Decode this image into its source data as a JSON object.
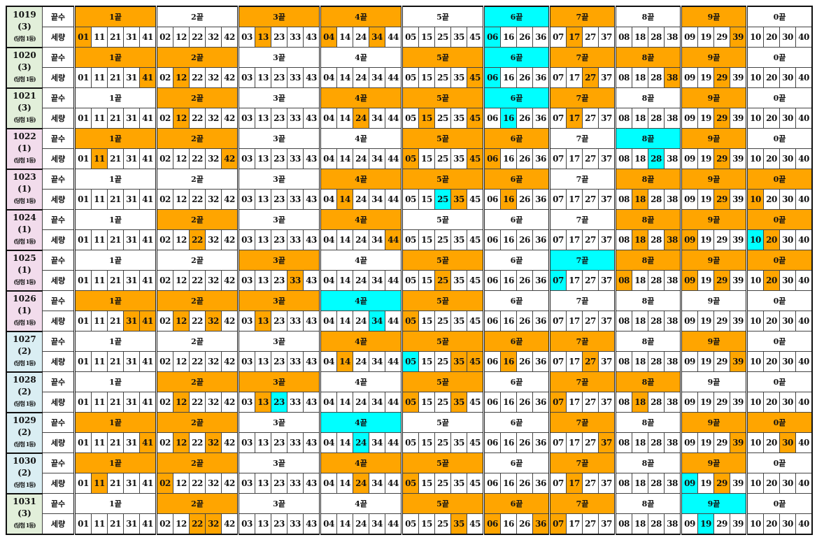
{
  "labels": {
    "header_row": "끝수",
    "number_row": "세량"
  },
  "colors": {
    "orange": "#ffa500",
    "cyan": "#00ffff",
    "green_label": "#e2efda",
    "pink_label": "#f2dcec",
    "blue_label": "#daeef3"
  },
  "groups": [
    {
      "label": "1끝",
      "numbers": [
        "01",
        "11",
        "21",
        "31",
        "41"
      ]
    },
    {
      "label": "2끝",
      "numbers": [
        "02",
        "12",
        "22",
        "32",
        "42"
      ]
    },
    {
      "label": "3끝",
      "numbers": [
        "03",
        "13",
        "23",
        "33",
        "43"
      ]
    },
    {
      "label": "4끝",
      "numbers": [
        "04",
        "14",
        "24",
        "34",
        "44"
      ]
    },
    {
      "label": "5끝",
      "numbers": [
        "05",
        "15",
        "25",
        "35",
        "45"
      ]
    },
    {
      "label": "6끝",
      "numbers": [
        "06",
        "16",
        "26",
        "36"
      ]
    },
    {
      "label": "7끝",
      "numbers": [
        "07",
        "17",
        "27",
        "37"
      ]
    },
    {
      "label": "8끝",
      "numbers": [
        "08",
        "18",
        "28",
        "38"
      ]
    },
    {
      "label": "9끝",
      "numbers": [
        "09",
        "19",
        "29",
        "39"
      ]
    },
    {
      "label": "0끝",
      "numbers": [
        "10",
        "20",
        "30",
        "40"
      ]
    }
  ],
  "rounds": [
    {
      "round": "1019",
      "count": "(3)",
      "note": "(당첨 1등)",
      "label_color": "green_label",
      "orange_groups": [
        "1끝",
        "3끝",
        "4끝",
        "7끝",
        "9끝"
      ],
      "cyan_groups": [
        "6끝"
      ],
      "orange_numbers": [
        "01",
        "13",
        "04",
        "34",
        "17",
        "39"
      ],
      "cyan_numbers": [
        "06"
      ]
    },
    {
      "round": "1020",
      "count": "(3)",
      "note": "(당첨 1등)",
      "label_color": "green_label",
      "orange_groups": [
        "1끝",
        "2끝",
        "5끝",
        "7끝",
        "8끝",
        "9끝"
      ],
      "cyan_groups": [
        "6끝"
      ],
      "orange_numbers": [
        "41",
        "12",
        "45",
        "27",
        "38",
        "29"
      ],
      "cyan_numbers": [
        "06"
      ]
    },
    {
      "round": "1021",
      "count": "(3)",
      "note": "(당첨 1등)",
      "label_color": "green_label",
      "orange_groups": [
        "2끝",
        "4끝",
        "5끝",
        "7끝",
        "9끝"
      ],
      "cyan_groups": [
        "6끝"
      ],
      "orange_numbers": [
        "12",
        "24",
        "15",
        "45",
        "17",
        "29"
      ],
      "cyan_numbers": [
        "16"
      ]
    },
    {
      "round": "1022",
      "count": "(1)",
      "note": "(당첨 1등)",
      "label_color": "pink_label",
      "orange_groups": [
        "1끝",
        "2끝",
        "5끝",
        "6끝",
        "9끝"
      ],
      "cyan_groups": [
        "8끝"
      ],
      "orange_numbers": [
        "11",
        "42",
        "05",
        "45",
        "06",
        "29"
      ],
      "cyan_numbers": [
        "28"
      ]
    },
    {
      "round": "1023",
      "count": "(1)",
      "note": "(당첨 1등)",
      "label_color": "pink_label",
      "orange_groups": [
        "4끝",
        "5끝",
        "6끝",
        "8끝",
        "9끝",
        "0끝"
      ],
      "cyan_groups": [],
      "orange_numbers": [
        "14",
        "35",
        "16",
        "18",
        "29",
        "10"
      ],
      "cyan_numbers": [
        "25"
      ]
    },
    {
      "round": "1024",
      "count": "(1)",
      "note": "(당첨 1등)",
      "label_color": "pink_label",
      "orange_groups": [
        "2끝",
        "4끝",
        "8끝",
        "9끝",
        "0끝"
      ],
      "cyan_groups": [],
      "orange_numbers": [
        "22",
        "44",
        "18",
        "38",
        "09",
        "20"
      ],
      "cyan_numbers": [
        "10"
      ]
    },
    {
      "round": "1025",
      "count": "(1)",
      "note": "(당첨 1등)",
      "label_color": "pink_label",
      "orange_groups": [
        "3끝",
        "5끝",
        "8끝",
        "9끝",
        "0끝"
      ],
      "cyan_groups": [
        "7끝"
      ],
      "orange_numbers": [
        "33",
        "25",
        "08",
        "09",
        "29",
        "20"
      ],
      "cyan_numbers": [
        "07"
      ]
    },
    {
      "round": "1026",
      "count": "(1)",
      "note": "(당첨 1등)",
      "label_color": "pink_label",
      "orange_groups": [
        "1끝",
        "2끝",
        "3끝",
        "5끝"
      ],
      "cyan_groups": [
        "4끝"
      ],
      "orange_numbers": [
        "31",
        "41",
        "12",
        "32",
        "13",
        "05"
      ],
      "cyan_numbers": [
        "34"
      ]
    },
    {
      "round": "1027",
      "count": "(2)",
      "note": "(당첨 1등)",
      "label_color": "blue_label",
      "orange_groups": [
        "4끝",
        "5끝",
        "6끝",
        "7끝",
        "9끝"
      ],
      "cyan_groups": [],
      "orange_numbers": [
        "14",
        "35",
        "45",
        "16",
        "27",
        "39"
      ],
      "cyan_numbers": [
        "05"
      ]
    },
    {
      "round": "1028",
      "count": "(2)",
      "note": "(당첨 1등)",
      "label_color": "blue_label",
      "orange_groups": [
        "2끝",
        "3끝",
        "5끝",
        "7끝",
        "8끝"
      ],
      "cyan_groups": [],
      "orange_numbers": [
        "12",
        "13",
        "05",
        "35",
        "07",
        "18"
      ],
      "cyan_numbers": [
        "23"
      ]
    },
    {
      "round": "1029",
      "count": "(2)",
      "note": "(당첨 1등)",
      "label_color": "blue_label",
      "orange_groups": [
        "1끝",
        "2끝",
        "7끝",
        "9끝",
        "0끝"
      ],
      "cyan_groups": [
        "4끝"
      ],
      "orange_numbers": [
        "41",
        "12",
        "32",
        "37",
        "39",
        "30"
      ],
      "cyan_numbers": [
        "24"
      ]
    },
    {
      "round": "1030",
      "count": "(2)",
      "note": "(당첨 1등)",
      "label_color": "blue_label",
      "orange_groups": [
        "1끝",
        "2끝",
        "4끝",
        "5끝",
        "7끝",
        "9끝"
      ],
      "cyan_groups": [],
      "orange_numbers": [
        "11",
        "02",
        "24",
        "05",
        "17",
        "29"
      ],
      "cyan_numbers": [
        "09"
      ]
    },
    {
      "round": "1031",
      "count": "(3)",
      "note": "(당첨 1등)",
      "label_color": "green_label",
      "orange_groups": [
        "2끝",
        "5끝",
        "6끝",
        "7끝"
      ],
      "cyan_groups": [
        "9끝"
      ],
      "orange_numbers": [
        "22",
        "32",
        "35",
        "06",
        "36",
        "07"
      ],
      "cyan_numbers": [
        "19"
      ]
    }
  ]
}
